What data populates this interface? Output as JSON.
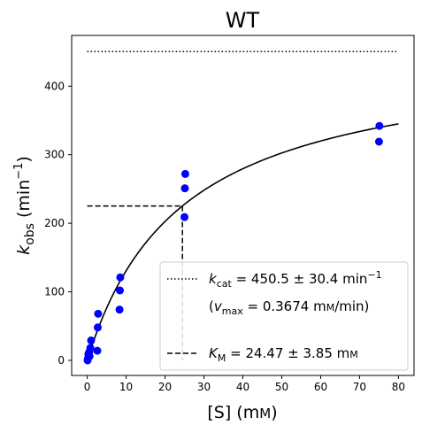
{
  "chart_data": {
    "type": "scatter",
    "title": "WT",
    "xlabel": {
      "main": "[S] (m",
      "unit_sc": "M",
      "close": ")"
    },
    "ylabel": {
      "k": "k",
      "sub": "obs",
      "pre": " (min",
      "sup": "−1",
      "post": ")"
    },
    "xlim": [
      -4,
      84
    ],
    "ylim": [
      -22,
      474
    ],
    "xticks": [
      0,
      10,
      20,
      30,
      40,
      50,
      60,
      70,
      80
    ],
    "yticks": [
      0,
      100,
      200,
      300,
      400
    ],
    "grid": false,
    "legend_position": "bottom-right",
    "points": {
      "color": "#0000ff",
      "x": [
        0.1,
        0.2,
        0.3,
        0.5,
        0.6,
        0.8,
        1.0,
        2.6,
        2.7,
        2.8,
        8.3,
        8.4,
        8.5,
        25.0,
        25.1,
        25.2,
        75.0,
        75.1
      ],
      "y": [
        0,
        3,
        9,
        12,
        6,
        18,
        29,
        14,
        48,
        68,
        74,
        102,
        121,
        209,
        251,
        272,
        319,
        342
      ]
    },
    "fit": {
      "model": "michaelis-menten",
      "kcat": 450.5,
      "KM": 24.47,
      "x_range": [
        0,
        80
      ],
      "color": "#000000"
    },
    "kcat_line": {
      "y": 450.5,
      "x_range": [
        0,
        80
      ],
      "style": "dotted"
    },
    "KM_lines": {
      "x": 24.47,
      "y": 225.25,
      "x_start": 0,
      "y_start": 0,
      "style": "dashed"
    },
    "legend": {
      "kcat": {
        "k": "k",
        "sub": "cat",
        "text": " = 450.5 ± 30.4 min",
        "sup": "−1"
      },
      "vmax": {
        "open": "(",
        "v": "v",
        "sub": "max",
        "text": " = 0.3674 m",
        "unit_sc": "M",
        "close": "/min)"
      },
      "km": {
        "k": "K",
        "sub": "M",
        "text": " = 24.47 ± 3.85 m",
        "unit_sc": "M"
      }
    }
  }
}
